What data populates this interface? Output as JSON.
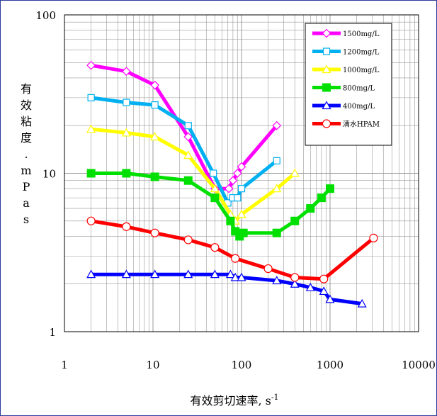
{
  "chart_data": {
    "type": "line",
    "title": "",
    "xlabel": "有效剪切速率, s",
    "xlabel_superscript": "-1",
    "ylabel": "有 效 粘 度 . m P a s",
    "xscale": "log",
    "yscale": "log",
    "xlim": [
      1,
      10000
    ],
    "ylim": [
      1,
      100
    ],
    "x_ticks": [
      {
        "value": 1,
        "label": "1"
      },
      {
        "value": 10,
        "label": "10"
      },
      {
        "value": 100,
        "label": "100"
      },
      {
        "value": 1000,
        "label": "1000"
      },
      {
        "value": 10000,
        "label": "10000"
      }
    ],
    "y_ticks": [
      {
        "value": 1,
        "label": "1"
      },
      {
        "value": 10,
        "label": "10"
      },
      {
        "value": 100,
        "label": "100"
      }
    ],
    "grid": true,
    "legend_position": "top-right",
    "series": [
      {
        "name": "1500mg/L",
        "color": "#ff00ff",
        "marker": "diamond",
        "x": [
          2,
          5,
          10.5,
          25,
          50,
          72,
          80,
          90,
          100,
          250
        ],
        "y": [
          48,
          44,
          36,
          17,
          8,
          8,
          9,
          10,
          11,
          20
        ]
      },
      {
        "name": "1200mg/L",
        "color": "#00b0f0",
        "marker": "square",
        "x": [
          2,
          5,
          10.5,
          25,
          48,
          70,
          80,
          90,
          100,
          250
        ],
        "y": [
          30,
          28,
          27,
          20,
          10,
          6.5,
          7,
          7,
          8,
          12
        ]
      },
      {
        "name": "1000mg/L",
        "color": "#ffff00",
        "marker": "triangle",
        "x": [
          2,
          5,
          10.5,
          25,
          50,
          75,
          85,
          100,
          250,
          400
        ],
        "y": [
          19,
          18,
          17,
          13,
          8,
          5.5,
          5,
          5.5,
          8,
          10
        ]
      },
      {
        "name": "800mg/L",
        "color": "#00e000",
        "marker": "square-filled",
        "x": [
          2,
          5,
          10.5,
          25,
          50,
          75,
          85,
          95,
          105,
          250,
          400,
          600,
          800,
          1000
        ],
        "y": [
          10,
          10,
          9.5,
          9,
          7,
          5,
          4.3,
          4,
          4.2,
          4.2,
          5,
          6,
          7,
          8
        ]
      },
      {
        "name": "400mg/L",
        "color": "#0000ff",
        "marker": "triangle",
        "x": [
          2,
          5,
          10.5,
          25,
          50,
          75,
          85,
          100,
          250,
          400,
          600,
          850,
          1000,
          2300
        ],
        "y": [
          2.3,
          2.3,
          2.3,
          2.3,
          2.3,
          2.3,
          2.2,
          2.2,
          2.1,
          2,
          1.9,
          1.8,
          1.6,
          1.5
        ]
      },
      {
        "name": "清水HPAM",
        "color": "#ff0000",
        "marker": "circle",
        "x": [
          2,
          5,
          10.5,
          25,
          50,
          85,
          200,
          400,
          850,
          3100
        ],
        "y": [
          5,
          4.6,
          4.2,
          3.8,
          3.4,
          2.9,
          2.5,
          2.2,
          2.15,
          3.9
        ]
      }
    ]
  }
}
